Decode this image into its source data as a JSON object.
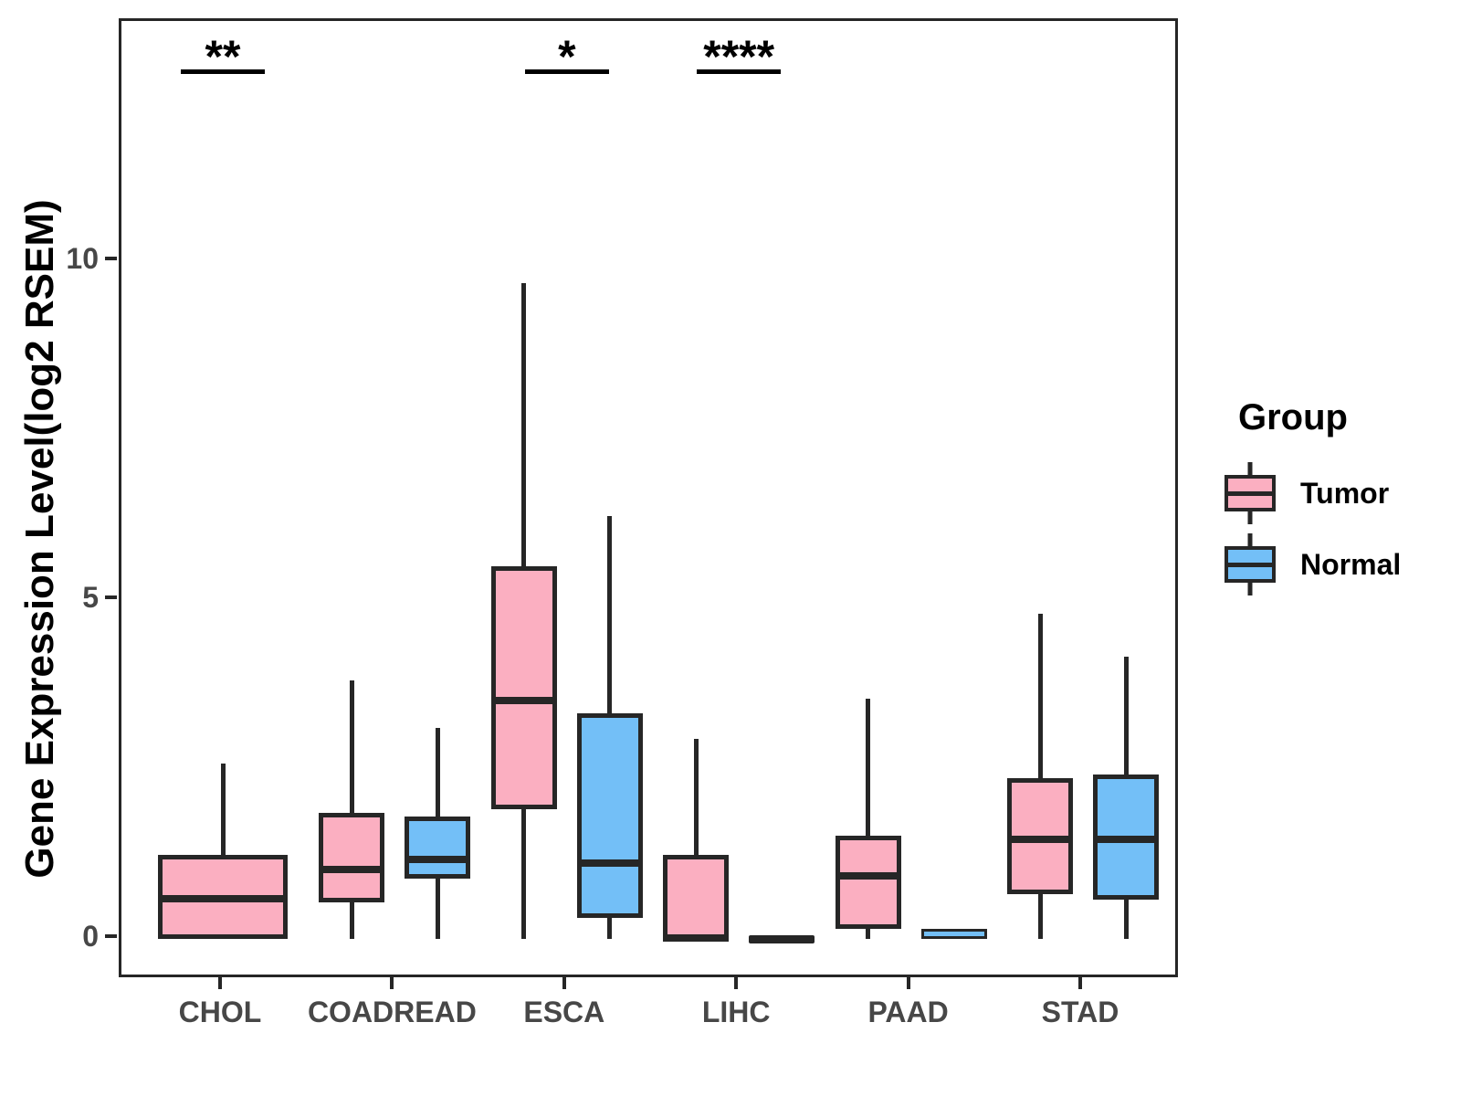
{
  "chart_data": {
    "type": "boxplot",
    "title": "",
    "xlabel": "",
    "ylabel": "Gene Expression Level(log2 RSEM)",
    "yticks": [
      0,
      5,
      10
    ],
    "ylim": [
      -0.6,
      13.55
    ],
    "grid": false,
    "categories": [
      "CHOL",
      "COADREAD",
      "ESCA",
      "LIHC",
      "PAAD",
      "STAD"
    ],
    "series": [
      {
        "name": "Tumor",
        "color": "#FBAFC1",
        "boxes": [
          {
            "min": 0,
            "q1": 0,
            "median": 0.6,
            "q3": 1.25,
            "max": 2.6
          },
          {
            "min": 0,
            "q1": 0.54,
            "median": 1.03,
            "q3": 1.86,
            "max": 3.82
          },
          {
            "min": 0,
            "q1": 1.92,
            "median": 3.52,
            "q3": 5.51,
            "max": 9.68
          },
          {
            "min": 0,
            "q1": 0,
            "median": 0.02,
            "q3": 1.24,
            "max": 2.96
          },
          {
            "min": 0,
            "q1": 0.16,
            "median": 0.94,
            "q3": 1.53,
            "max": 3.55
          },
          {
            "min": 0,
            "q1": 0.67,
            "median": 1.48,
            "q3": 2.38,
            "max": 4.81
          }
        ]
      },
      {
        "name": "Normal",
        "color": "#73BFF7",
        "boxes": [
          null,
          {
            "min": 0,
            "q1": 0.9,
            "median": 1.18,
            "q3": 1.81,
            "max": 3.12
          },
          {
            "min": 0,
            "q1": 0.32,
            "median": 1.12,
            "q3": 3.33,
            "max": 6.25
          },
          {
            "min": 0,
            "q1": 0,
            "median": 0,
            "q3": 0.04,
            "max": 0.04
          },
          {
            "min": 0,
            "q1": 0,
            "median": 0.05,
            "q3": 0.15,
            "max": 0.15
          },
          {
            "min": 0,
            "q1": 0.58,
            "median": 1.47,
            "q3": 2.43,
            "max": 4.17
          }
        ]
      }
    ],
    "significance": [
      {
        "category": "CHOL",
        "label": "**"
      },
      {
        "category": "ESCA",
        "label": "*"
      },
      {
        "category": "LIHC",
        "label": "****"
      }
    ],
    "legend": {
      "title": "Group",
      "position": "right",
      "entries": [
        {
          "label": "Tumor",
          "color": "#FBAFC1"
        },
        {
          "label": "Normal",
          "color": "#73BFF7"
        }
      ]
    },
    "line_color": "#262626"
  }
}
